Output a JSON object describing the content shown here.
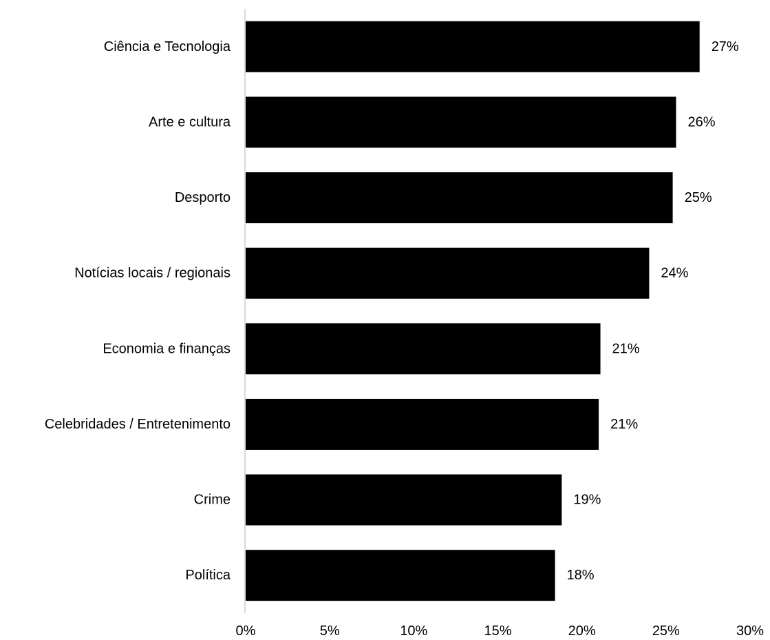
{
  "chart_data": {
    "type": "bar",
    "orientation": "horizontal",
    "categories": [
      "Ciência e Tecnologia",
      "Arte e cultura",
      "Desporto",
      "Notícias locais / regionais",
      "Economia e finanças",
      "Celebridades / Entretenimento",
      "Crime",
      "Política"
    ],
    "values": [
      27,
      25.6,
      25.4,
      24,
      21.1,
      21,
      18.8,
      18.4
    ],
    "value_labels": [
      "27%",
      "26%",
      "25%",
      "24%",
      "21%",
      "21%",
      "19%",
      "18%"
    ],
    "xlim": [
      0,
      30
    ],
    "x_ticks": [
      0,
      5,
      10,
      15,
      20,
      25,
      30
    ],
    "x_tick_labels": [
      "0%",
      "5%",
      "10%",
      "15%",
      "20%",
      "25%",
      "30%"
    ],
    "bar_color": "#000000",
    "axis_color": "#d9d9d9",
    "grid": false,
    "legend": "none"
  }
}
